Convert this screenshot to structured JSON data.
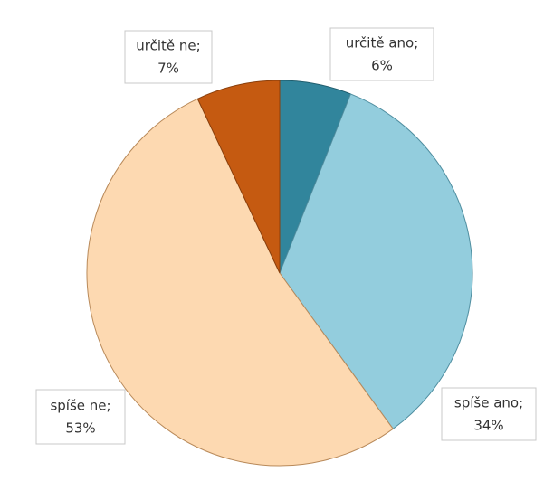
{
  "chart_data": {
    "type": "pie",
    "categories": [
      "určitě ano;",
      "spíše ano;",
      "spíše ne;",
      "určitě ne;"
    ],
    "values": [
      6,
      34,
      53,
      7
    ],
    "value_labels": [
      "6%",
      "34%",
      "53%",
      "7%"
    ],
    "colors": [
      "#31859c",
      "#93cddd",
      "#fdd9b1",
      "#c55a11"
    ]
  }
}
